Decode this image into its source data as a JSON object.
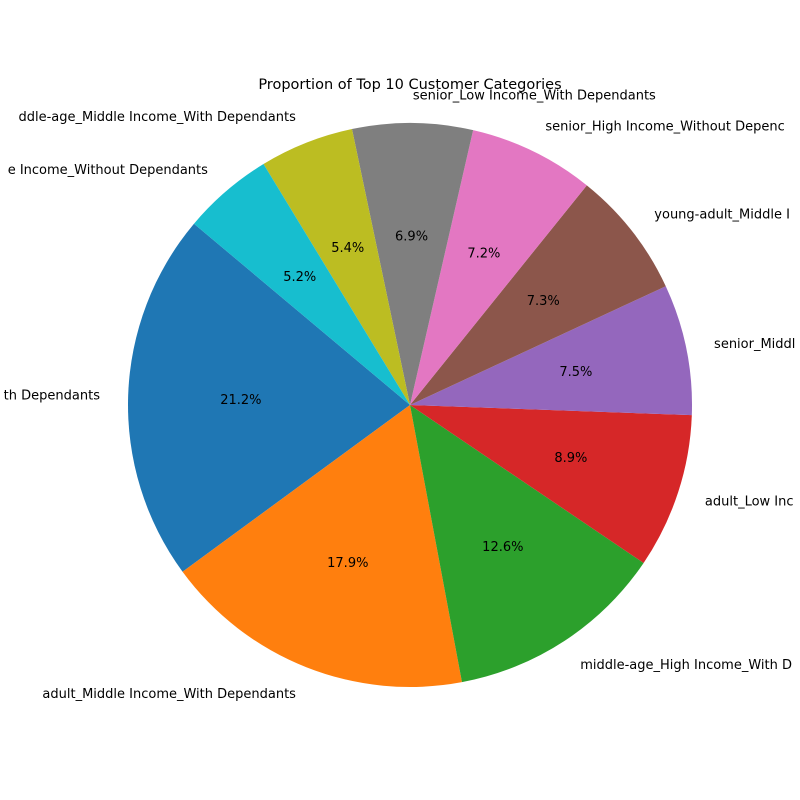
{
  "chart_data": {
    "type": "pie",
    "title": "Proportion of Top 10 Customer Categories",
    "start_angle_deg": 140,
    "direction": "counterclockwise",
    "slices": [
      {
        "label": "adult_Middle Income_With Dependants",
        "label_visible": "th Dependants",
        "value": 21.2,
        "pct_label": "21.2%",
        "color": "#1f77b4"
      },
      {
        "label": "adult_Middle Income_With Dependants",
        "value": 17.9,
        "pct_label": "17.9%",
        "color": "#ff7f0e"
      },
      {
        "label": "middle-age_High Income_With D",
        "value": 12.6,
        "pct_label": "12.6%",
        "color": "#2ca02c"
      },
      {
        "label": "adult_Low Inc",
        "value": 8.9,
        "pct_label": "8.9%",
        "color": "#d62728"
      },
      {
        "label": "senior_Middl",
        "value": 7.5,
        "pct_label": "7.5%",
        "color": "#9467bd"
      },
      {
        "label": "young-adult_Middle I",
        "value": 7.3,
        "pct_label": "7.3%",
        "color": "#8c564b"
      },
      {
        "label": "senior_High Income_Without Depenc",
        "value": 7.2,
        "pct_label": "7.2%",
        "color": "#e377c2"
      },
      {
        "label": "senior_Low Income_With Dependants",
        "value": 6.9,
        "pct_label": "6.9%",
        "color": "#7f7f7f"
      },
      {
        "label": "ddle-age_Middle Income_With Dependants",
        "value": 5.4,
        "pct_label": "5.4%",
        "color": "#bcbd22"
      },
      {
        "label": "e Income_Without Dependants",
        "value": 5.2,
        "pct_label": "5.2%",
        "color": "#17becf"
      }
    ]
  }
}
